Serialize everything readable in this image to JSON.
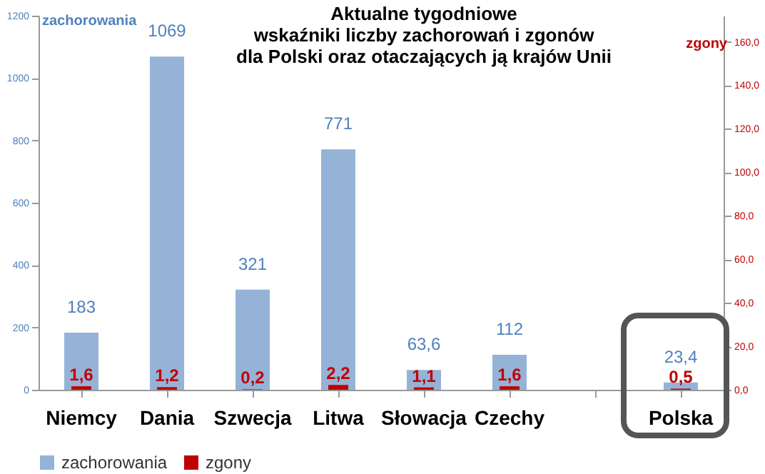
{
  "chart_data": {
    "type": "bar",
    "title": "Aktualne tygodniowe\nwskaźniki liczby zachorowań i zgonów\ndla Polski oraz otaczających ją krajów Unii",
    "categories": [
      "Niemcy",
      "Dania",
      "Szwecja",
      "Litwa",
      "Słowacja",
      "Czechy",
      null,
      "Polska"
    ],
    "ylabel": "zachorowania",
    "y2label": "zgony",
    "series": [
      {
        "name": "zachorowania",
        "color": "#95b3d7",
        "values": [
          183,
          1069,
          321,
          771,
          63.6,
          112,
          null,
          23.4
        ],
        "value_labels": [
          "183",
          "1069",
          "321",
          "771",
          "63,6",
          "112",
          null,
          "23,4"
        ]
      },
      {
        "name": "zgony",
        "color": "#c00000",
        "axis": "y2",
        "values": [
          1.6,
          1.2,
          0.2,
          2.2,
          1.1,
          1.6,
          null,
          0.5
        ],
        "value_labels": [
          "1,6",
          "1,2",
          "0,2",
          "2,2",
          "1,1",
          "1,6",
          null,
          "0,5"
        ]
      }
    ],
    "ylim": [
      0,
      1200
    ],
    "yticks": [
      0,
      200,
      400,
      600,
      800,
      1000,
      1200
    ],
    "y2lim": [
      0,
      172
    ],
    "y2ticks": [
      {
        "value": 0,
        "label": "0,0"
      },
      {
        "value": 20,
        "label": "20,0"
      },
      {
        "value": 40,
        "label": "40,0"
      },
      {
        "value": 60,
        "label": "60,0"
      },
      {
        "value": 80,
        "label": "80,0"
      },
      {
        "value": 100,
        "label": "100,0"
      },
      {
        "value": 120,
        "label": "120,0"
      },
      {
        "value": 140,
        "label": "140,0"
      },
      {
        "value": 160,
        "label": "160,0"
      }
    ],
    "legend": "bottom",
    "grid": false
  }
}
